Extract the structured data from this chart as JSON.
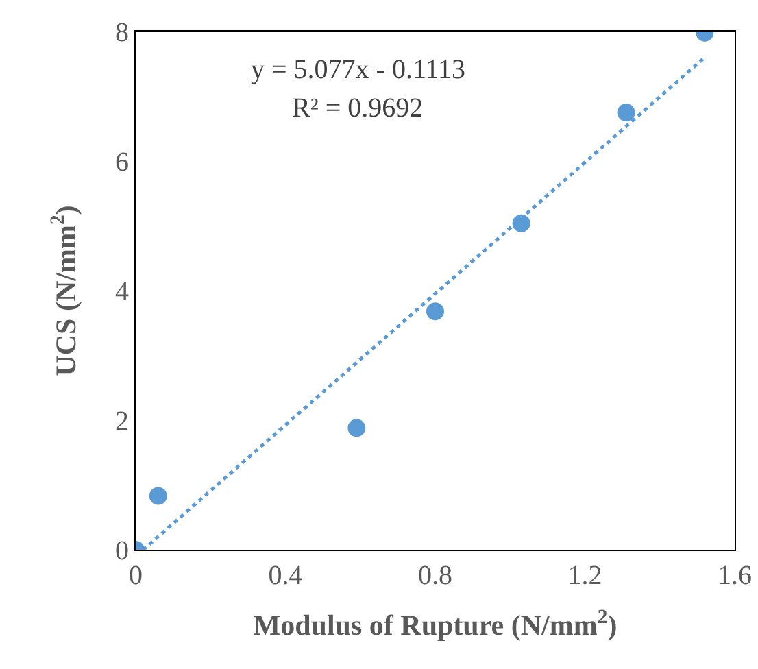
{
  "chart_data": {
    "type": "scatter",
    "xlabel": "Modulus of Rupture (N/mm$^{2}$)",
    "ylabel": "UCS (N/mm$^{2}$)",
    "x": [
      0,
      0.06,
      0.59,
      0.8,
      1.03,
      1.31,
      1.52
    ],
    "series": [
      {
        "color": "#5b9bd5",
        "values": [
          0,
          0.83,
          1.88,
          3.68,
          5.04,
          6.75,
          7.98
        ],
        "marker": "circle"
      },
      {
        "type": "line",
        "color": "#5b9bd5",
        "x": [
          0.02,
          1.52
        ],
        "values": [
          0,
          7.6
        ],
        "line_style": "dotted",
        "marker": "none"
      }
    ],
    "annotations": [
      "y = 5.077x - 0.1113",
      "R² = 0.9692"
    ],
    "xlim": [
      0,
      1.6
    ],
    "xticks": [
      0,
      0.4,
      0.8,
      1.2,
      1.6
    ],
    "ylim": [
      0,
      8
    ],
    "yticks": [
      0,
      2,
      4,
      6,
      8
    ],
    "grid": false
  }
}
